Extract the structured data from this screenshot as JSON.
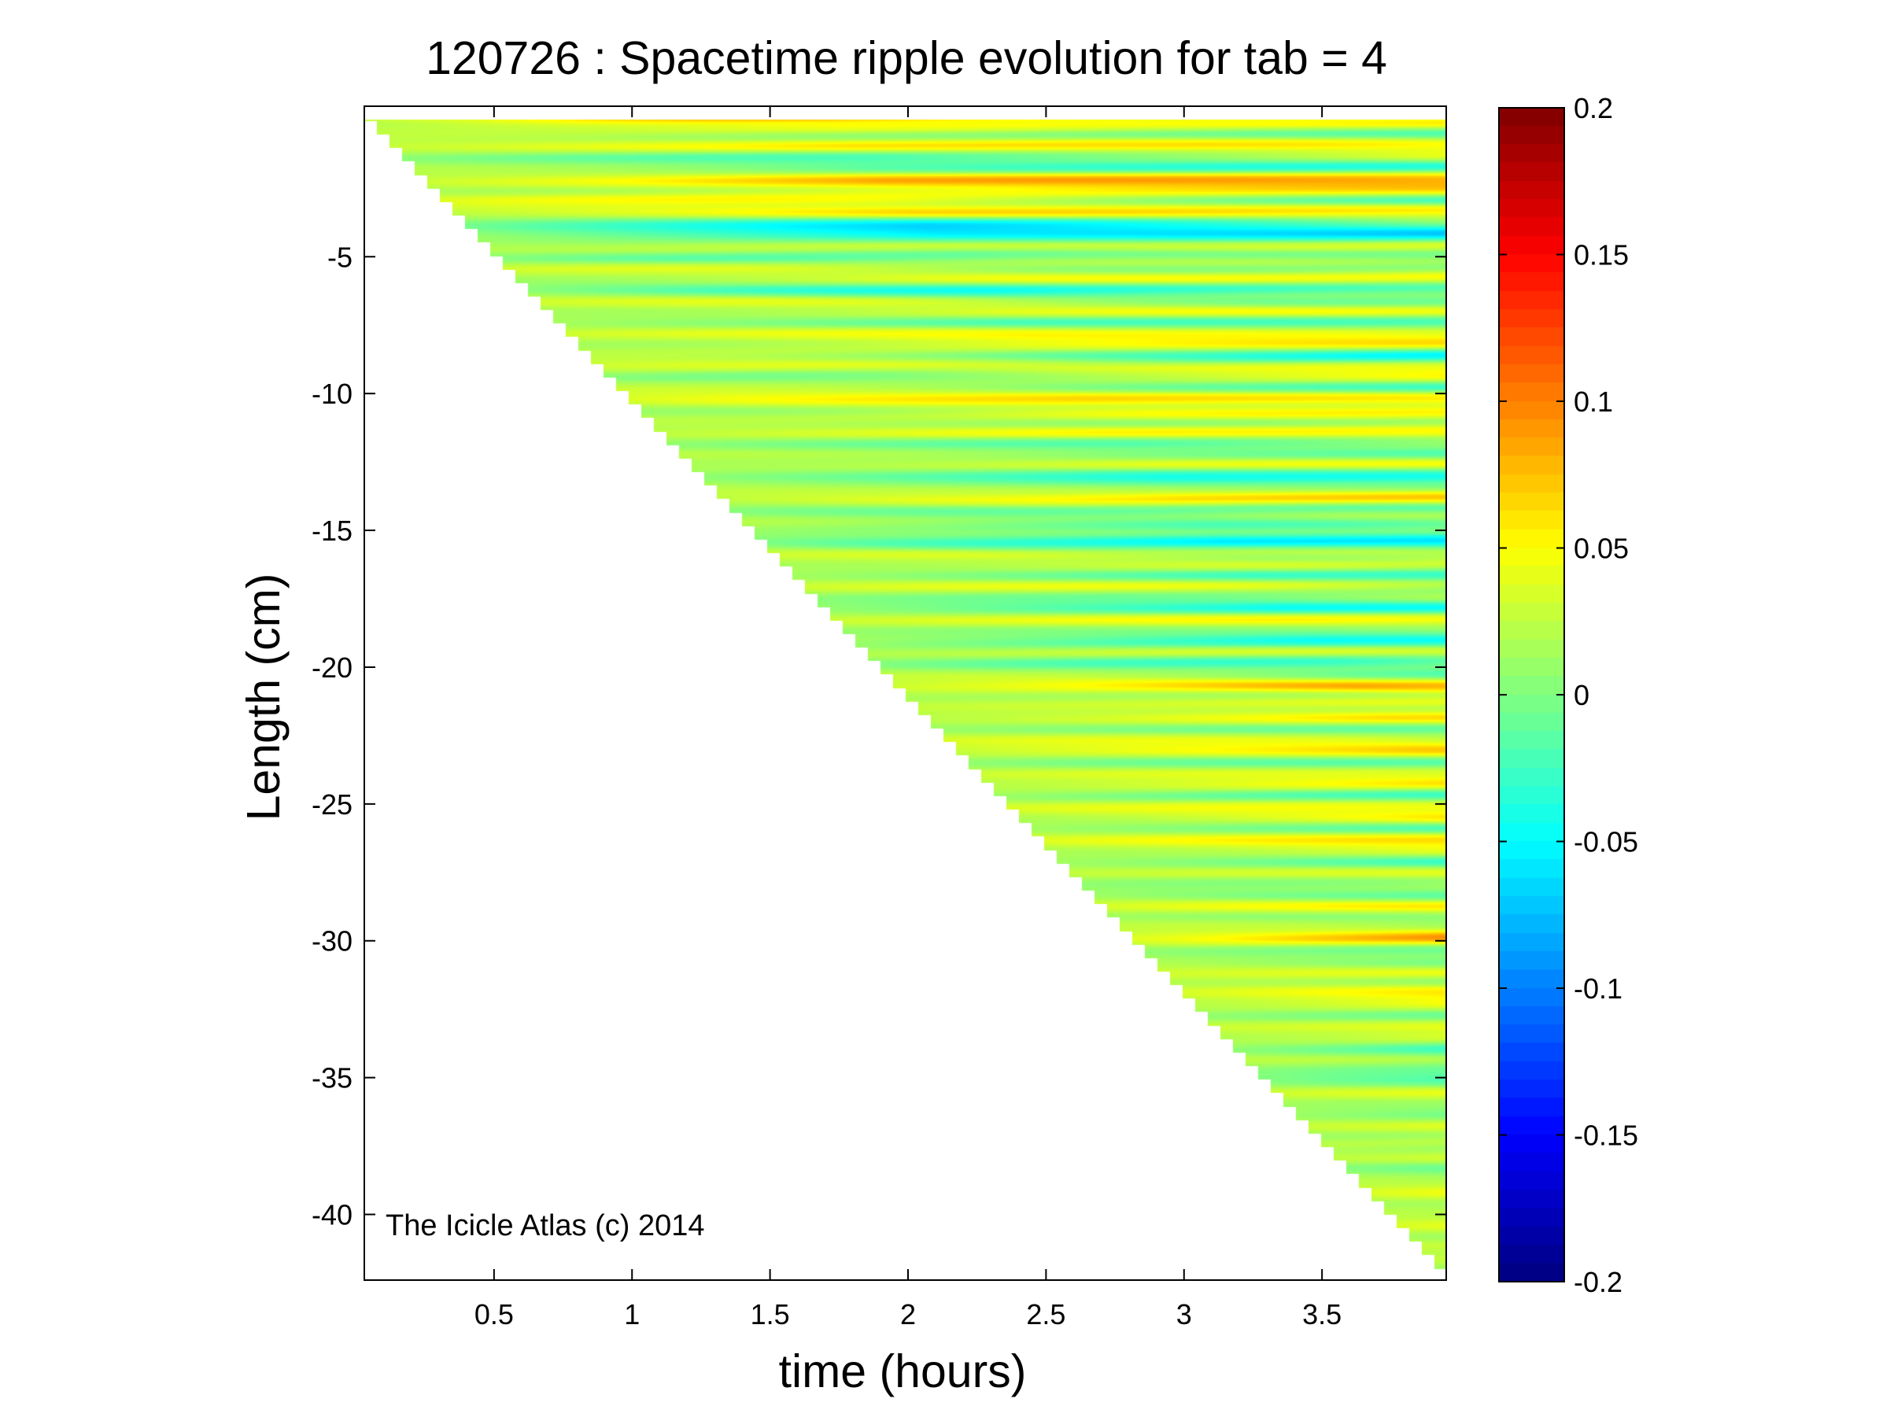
{
  "chart_data": {
    "type": "heatmap",
    "title": "120726 : Spacetime ripple evolution for tab = 4",
    "xlabel": "time (hours)",
    "ylabel": "Length (cm)",
    "xlim": [
      0.03,
      3.95
    ],
    "ylim": [
      -42.4,
      0.5
    ],
    "x_ticks": [
      0.5,
      1,
      1.5,
      2,
      2.5,
      3,
      3.5
    ],
    "x_tick_labels": [
      "0.5",
      "1",
      "1.5",
      "2",
      "2.5",
      "3",
      "3.5"
    ],
    "y_ticks": [
      -5,
      -10,
      -15,
      -20,
      -25,
      -30,
      -35,
      -40
    ],
    "y_tick_labels": [
      "-5",
      "-10",
      "-15",
      "-20",
      "-25",
      "-30",
      "-35",
      "-40"
    ],
    "colorbar": {
      "colormap": "jet",
      "clim": [
        -0.2,
        0.2
      ],
      "ticks": [
        0.2,
        0.15,
        0.1,
        0.05,
        0,
        -0.05,
        -0.1,
        -0.15,
        -0.2
      ],
      "tick_labels": [
        "0.2",
        "0.15",
        "0.1",
        "0.05",
        "0",
        "-0.05",
        "-0.1",
        "-0.15",
        "-0.2"
      ]
    },
    "coverage_front": [
      [
        0.05,
        0.0
      ],
      [
        3.93,
        -42.0
      ]
    ],
    "annotation": "The Icicle Atlas (c) 2014"
  }
}
